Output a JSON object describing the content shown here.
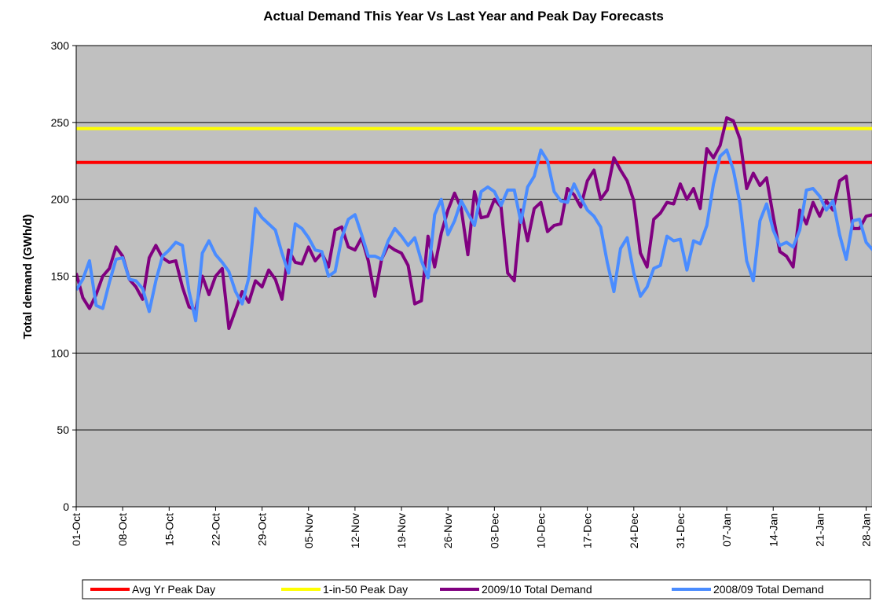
{
  "chart_data": {
    "type": "line",
    "title": "Actual Demand This Year Vs Last Year and Peak Day Forecasts",
    "y_label": "Total demand (GWh/d)",
    "ylim": [
      0,
      300
    ],
    "yticks": [
      0,
      50,
      100,
      150,
      200,
      250,
      300
    ],
    "grid": true,
    "legend": "bottom",
    "categories": [
      "01-Oct",
      null,
      null,
      null,
      null,
      null,
      null,
      "08-Oct",
      null,
      null,
      null,
      null,
      null,
      null,
      "15-Oct",
      null,
      null,
      null,
      null,
      null,
      null,
      "22-Oct",
      null,
      null,
      null,
      null,
      null,
      null,
      "29-Oct",
      null,
      null,
      null,
      null,
      null,
      null,
      "05-Nov",
      null,
      null,
      null,
      null,
      null,
      null,
      "12-Nov",
      null,
      null,
      null,
      null,
      null,
      null,
      "19-Nov",
      null,
      null,
      null,
      null,
      null,
      null,
      "26-Nov",
      null,
      null,
      null,
      null,
      null,
      null,
      "03-Dec",
      null,
      null,
      null,
      null,
      null,
      null,
      "10-Dec",
      null,
      null,
      null,
      null,
      null,
      null,
      "17-Dec",
      null,
      null,
      null,
      null,
      null,
      null,
      "24-Dec",
      null,
      null,
      null,
      null,
      null,
      null,
      "31-Dec",
      null,
      null,
      null,
      null,
      null,
      null,
      "07-Jan",
      null,
      null,
      null,
      null,
      null,
      null,
      "14-Jan",
      null,
      null,
      null,
      null,
      null,
      null,
      "21-Jan",
      null,
      null,
      null,
      null,
      null,
      null,
      "28-Jan",
      null
    ],
    "series": [
      {
        "name": "Avg Yr Peak Day",
        "color": "#ff0000",
        "value": 224
      },
      {
        "name": "1-in-50 Peak Day",
        "color": "#ffff00",
        "value": 246
      },
      {
        "name": "2009/10 Total Demand",
        "color": "#800080",
        "values": [
          152,
          136,
          129,
          138,
          150,
          155,
          169,
          163,
          148,
          143,
          135,
          162,
          170,
          162,
          159,
          160,
          143,
          130,
          128,
          150,
          138,
          150,
          155,
          116,
          128,
          140,
          133,
          147,
          143,
          154,
          148,
          135,
          167,
          159,
          158,
          169,
          160,
          165,
          156,
          180,
          182,
          169,
          167,
          175,
          160,
          137,
          161,
          170,
          167,
          165,
          157,
          132,
          134,
          176,
          156,
          178,
          193,
          204,
          194,
          164,
          205,
          188,
          189,
          200,
          195,
          152,
          147,
          193,
          173,
          194,
          198,
          179,
          183,
          184,
          207,
          203,
          195,
          212,
          219,
          200,
          206,
          227,
          219,
          212,
          199,
          165,
          156,
          187,
          191,
          198,
          197,
          210,
          200,
          207,
          194,
          233,
          227,
          235,
          253,
          251,
          239,
          207,
          217,
          209,
          214,
          189,
          166,
          163,
          156,
          193,
          184,
          198,
          189,
          199,
          193,
          212,
          215,
          181,
          181,
          189,
          190
        ]
      },
      {
        "name": "2008/09 Total Demand",
        "color": "#4a8cff",
        "values": [
          141,
          148,
          160,
          131,
          129,
          146,
          161,
          162,
          148,
          147,
          142,
          127,
          147,
          163,
          167,
          172,
          170,
          140,
          121,
          165,
          173,
          164,
          159,
          153,
          140,
          132,
          149,
          194,
          188,
          184,
          180,
          165,
          152,
          184,
          181,
          175,
          167,
          166,
          150,
          153,
          175,
          187,
          190,
          177,
          163,
          163,
          161,
          173,
          181,
          176,
          170,
          175,
          160,
          149,
          190,
          200,
          177,
          186,
          199,
          191,
          183,
          205,
          208,
          205,
          196,
          206,
          206,
          185,
          208,
          215,
          232,
          225,
          205,
          199,
          198,
          210,
          201,
          193,
          189,
          182,
          159,
          140,
          168,
          175,
          152,
          137,
          143,
          155,
          157,
          176,
          173,
          174,
          154,
          173,
          171,
          183,
          210,
          228,
          232,
          219,
          197,
          160,
          147,
          186,
          197,
          180,
          170,
          172,
          169,
          180,
          206,
          207,
          202,
          193,
          199,
          177,
          161,
          186,
          187,
          172,
          167
        ]
      }
    ]
  }
}
